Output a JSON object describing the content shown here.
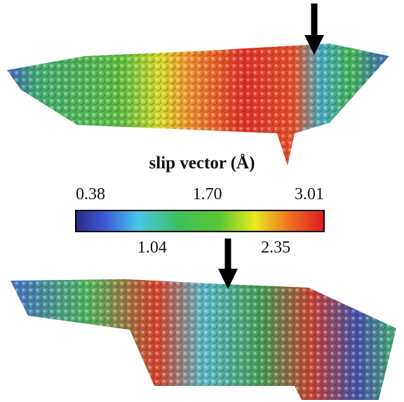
{
  "colorbar": {
    "label": "slip vector (Å)",
    "ticks": [
      0.38,
      1.04,
      {
        "value": 1.7,
        "label": "1.70"
      },
      2.35,
      3.01
    ]
  }
}
